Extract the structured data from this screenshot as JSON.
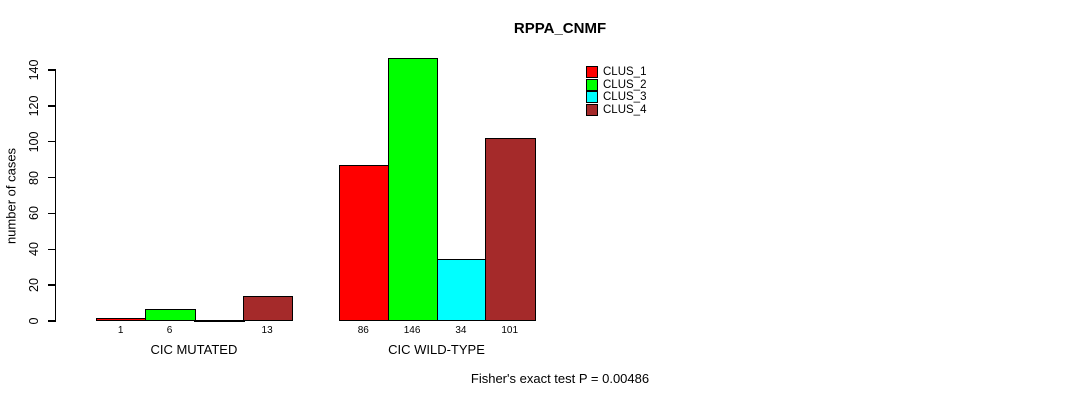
{
  "figure": {
    "title": "RPPA_CNMF",
    "stat_annotation": "Fisher's exact test P = 0.00486"
  },
  "chart_data": {
    "type": "bar",
    "title": "RPPA_CNMF",
    "xlabel": "",
    "ylabel": "number of cases",
    "ylim": [
      0,
      140
    ],
    "yticks": [
      0,
      20,
      40,
      60,
      80,
      100,
      120,
      140
    ],
    "grid": false,
    "categories": [
      "CIC MUTATED",
      "CIC WILD-TYPE"
    ],
    "series": [
      {
        "name": "CLUS_1",
        "color": "#FF0000",
        "values": [
          1,
          86
        ]
      },
      {
        "name": "CLUS_2",
        "color": "#00FF00",
        "values": [
          6,
          146
        ]
      },
      {
        "name": "CLUS_3",
        "color": "#00FFFF",
        "values": [
          0,
          34
        ]
      },
      {
        "name": "CLUS_4",
        "color": "#A52A2A",
        "values": [
          13,
          101
        ]
      }
    ],
    "bar_value_labels": [
      [
        "1",
        "6",
        "",
        "13"
      ],
      [
        "86",
        "146",
        "34",
        "101"
      ]
    ],
    "legend": {
      "position": "top-right",
      "entries": [
        "CLUS_1",
        "CLUS_2",
        "CLUS_3",
        "CLUS_4"
      ]
    },
    "annotation": "Fisher's exact test P = 0.00486"
  }
}
